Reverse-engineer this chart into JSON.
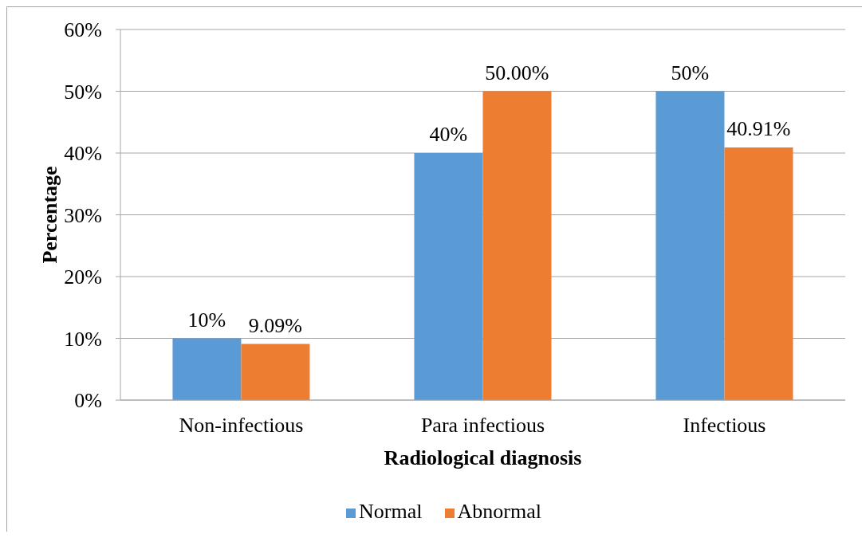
{
  "chart_data": {
    "type": "bar",
    "xlabel": "Radiological diagnosis",
    "ylabel": "Percentage",
    "categories": [
      "Non-infectious",
      "Para infectious",
      "Infectious"
    ],
    "series": [
      {
        "name": "Normal",
        "color": "#5b9bd5",
        "values": [
          10,
          40,
          50
        ],
        "value_labels": [
          "10%",
          "40%",
          "50%"
        ]
      },
      {
        "name": "Abnormal",
        "color": "#ed7d31",
        "values": [
          9.09,
          50,
          40.91
        ],
        "value_labels": [
          "9.09%",
          "50.00%",
          "40.91%"
        ]
      }
    ],
    "ylim": [
      0,
      60
    ],
    "yticks": [
      {
        "value": 0,
        "label": "0%"
      },
      {
        "value": 10,
        "label": "10%"
      },
      {
        "value": 20,
        "label": "20%"
      },
      {
        "value": 30,
        "label": "30%"
      },
      {
        "value": 40,
        "label": "40%"
      },
      {
        "value": 50,
        "label": "50%"
      },
      {
        "value": 60,
        "label": "60%"
      }
    ],
    "grid": "y",
    "legend": "bottom"
  }
}
